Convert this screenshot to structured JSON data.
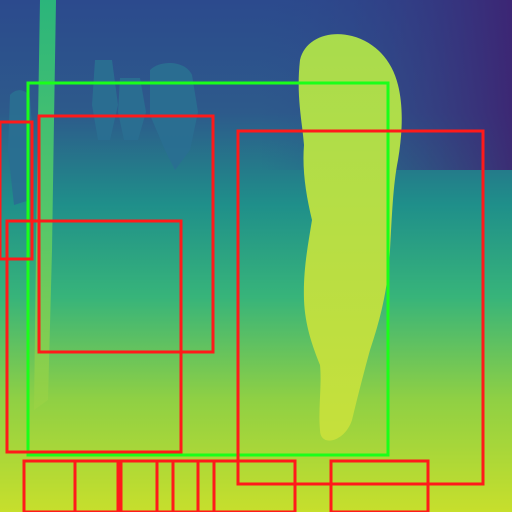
{
  "image": {
    "kind": "depth-map-visualization",
    "colormap": "viridis",
    "palette": {
      "far": "#3b1e6f",
      "mid": "#1e8f8a",
      "near": "#c8de2a"
    }
  },
  "annotations": {
    "box_colors": {
      "red": "#ff1a1a",
      "green": "#1aff1a"
    },
    "red_box_count": 12,
    "green_box_count": 1
  }
}
